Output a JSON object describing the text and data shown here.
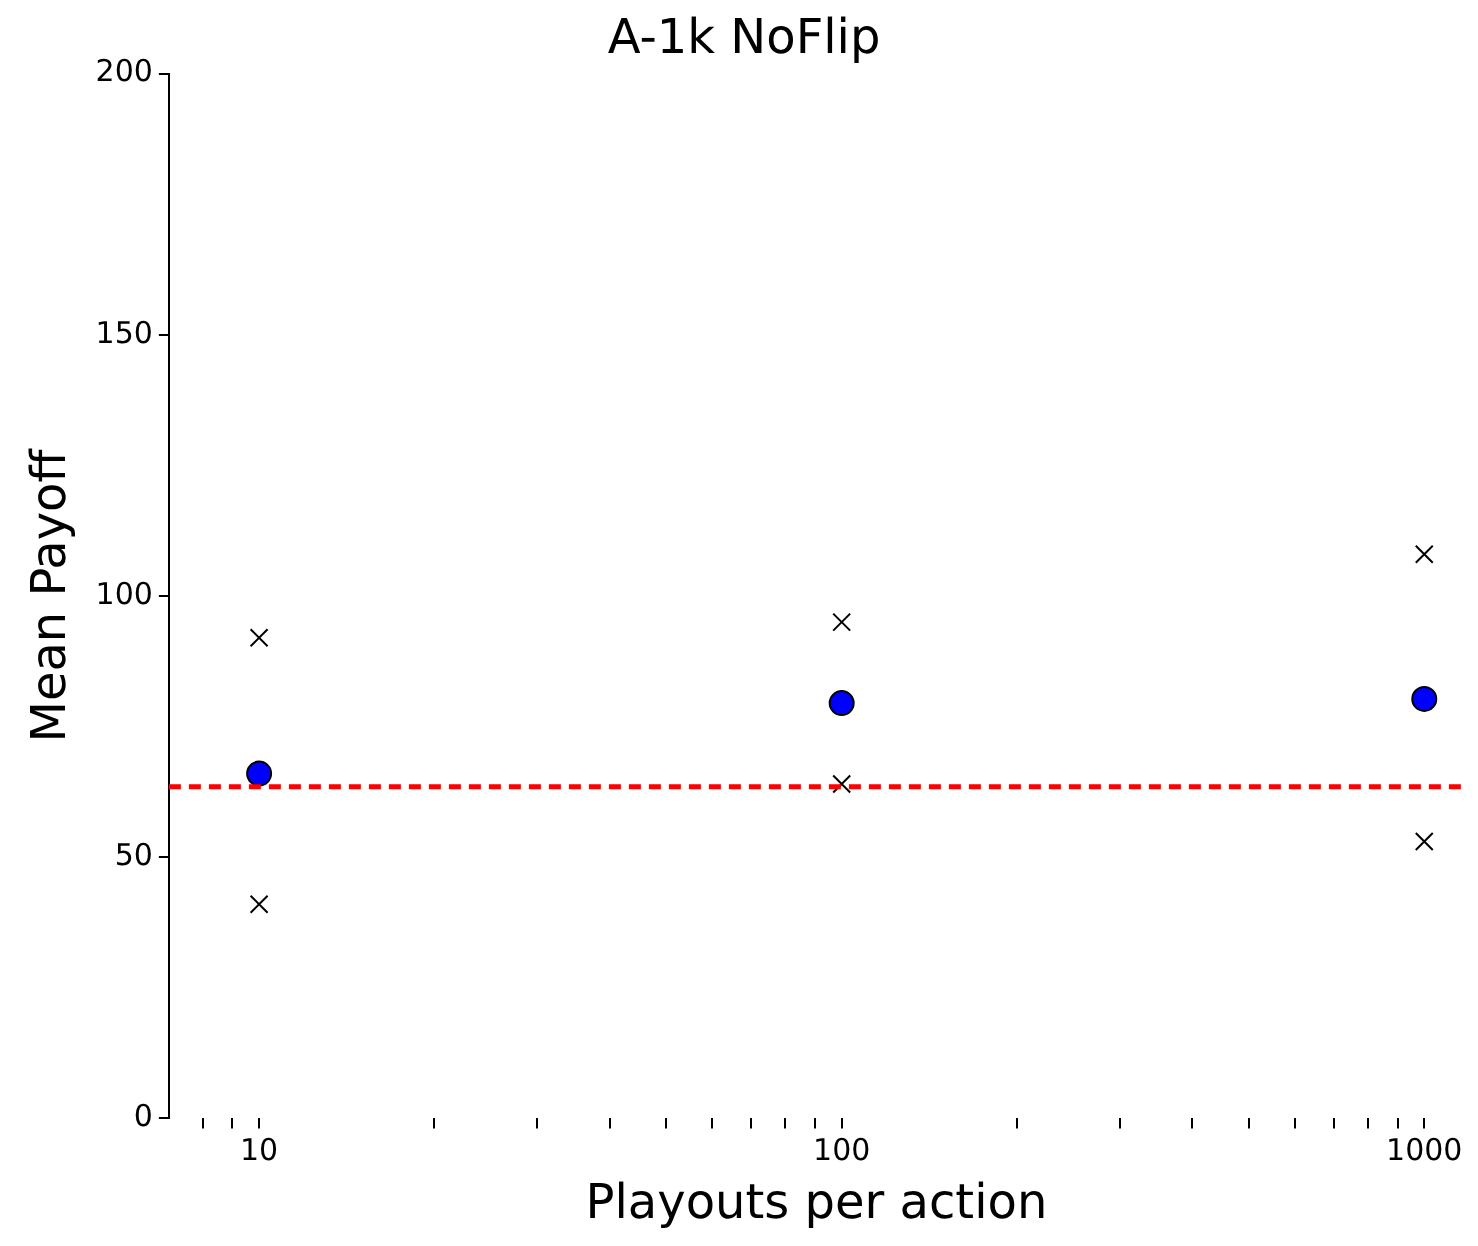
{
  "chart_data": {
    "type": "scatter",
    "title": "A-1k NoFlip",
    "xlabel": "Playouts per action",
    "ylabel": "Mean Payoff",
    "log": "x",
    "grid": false,
    "xlim": [
      7,
      1170
    ],
    "xticks": [
      {
        "value": 8,
        "label": null
      },
      {
        "value": 9,
        "label": null
      },
      10,
      {
        "value": 20,
        "label": null
      },
      {
        "value": 30,
        "label": null
      },
      {
        "value": 40,
        "label": null
      },
      {
        "value": 50,
        "label": null
      },
      {
        "value": 60,
        "label": null
      },
      {
        "value": 70,
        "label": null
      },
      {
        "value": 80,
        "label": null
      },
      {
        "value": 90,
        "label": null
      },
      100,
      {
        "value": 200,
        "label": null
      },
      {
        "value": 300,
        "label": null
      },
      {
        "value": 400,
        "label": null
      },
      {
        "value": 500,
        "label": null
      },
      {
        "value": 600,
        "label": null
      },
      {
        "value": 700,
        "label": null
      },
      {
        "value": 800,
        "label": null
      },
      {
        "value": 900,
        "label": null
      },
      1000
    ],
    "ylim": [
      0,
      200
    ],
    "yticks": [
      0,
      50,
      100,
      150,
      200
    ],
    "series": [
      {
        "color": "#000000",
        "marker": "cross",
        "x": [
          10,
          100,
          1000
        ],
        "values": [
          92,
          95,
          108
        ]
      },
      {
        "color": "#000000",
        "marker": "cross",
        "x": [
          10,
          100,
          1000
        ],
        "values": [
          41,
          64,
          53
        ]
      },
      {
        "color": "#0000ff",
        "marker": "circle",
        "x": [
          10,
          100,
          1000
        ],
        "values": [
          66,
          79.5,
          80.3
        ]
      }
    ],
    "ref_lines": [
      {
        "axis": "y",
        "value": 63.5,
        "color": "#ff0000",
        "line_style": "dashed"
      }
    ]
  }
}
